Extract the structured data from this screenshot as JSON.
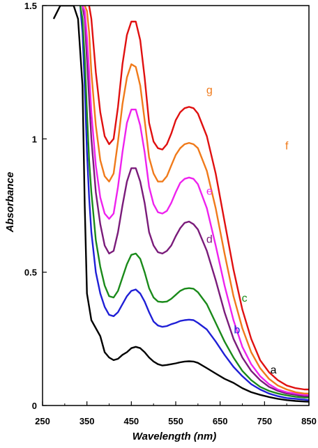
{
  "chart_data": {
    "type": "line",
    "xlabel": "Wavelength (nm)",
    "ylabel": "Absorbance",
    "xlim": [
      250,
      850
    ],
    "ylim": [
      0,
      1.5
    ],
    "xticks": [
      "250",
      "350",
      "450",
      "550",
      "650",
      "750",
      "850"
    ],
    "yticks": [
      "0",
      "0.5",
      "1",
      "1.5"
    ],
    "grid": false,
    "legend": "none",
    "series": [
      {
        "name": "a",
        "color": "#000000",
        "x": [
          275,
          290,
          300,
          310,
          320,
          330,
          340,
          345,
          350,
          360,
          370,
          380,
          390,
          400,
          410,
          420,
          430,
          440,
          450,
          460,
          470,
          480,
          490,
          500,
          510,
          520,
          530,
          540,
          550,
          560,
          570,
          580,
          590,
          600,
          620,
          640,
          660,
          680,
          700,
          720,
          740,
          760,
          780,
          800,
          820,
          840,
          850
        ],
        "y": [
          1.45,
          1.5,
          1.5,
          1.5,
          1.5,
          1.45,
          1.2,
          0.75,
          0.42,
          0.32,
          0.29,
          0.26,
          0.2,
          0.18,
          0.17,
          0.175,
          0.19,
          0.2,
          0.215,
          0.22,
          0.215,
          0.2,
          0.18,
          0.165,
          0.155,
          0.15,
          0.152,
          0.155,
          0.158,
          0.162,
          0.165,
          0.166,
          0.165,
          0.16,
          0.14,
          0.12,
          0.1,
          0.085,
          0.065,
          0.05,
          0.04,
          0.032,
          0.025,
          0.02,
          0.017,
          0.015,
          0.014
        ]
      },
      {
        "name": "b",
        "color": "#1f1fd6",
        "x": [
          335,
          340,
          345,
          350,
          355,
          360,
          370,
          380,
          390,
          400,
          410,
          420,
          430,
          440,
          450,
          460,
          470,
          480,
          490,
          500,
          510,
          520,
          530,
          540,
          550,
          560,
          570,
          580,
          590,
          600,
          620,
          640,
          660,
          680,
          700,
          720,
          740,
          760,
          780,
          800,
          820,
          840,
          850
        ],
        "y": [
          1.5,
          1.4,
          1.2,
          0.95,
          0.78,
          0.65,
          0.5,
          0.42,
          0.37,
          0.34,
          0.335,
          0.35,
          0.38,
          0.41,
          0.43,
          0.435,
          0.42,
          0.39,
          0.35,
          0.315,
          0.3,
          0.295,
          0.298,
          0.305,
          0.31,
          0.317,
          0.32,
          0.322,
          0.32,
          0.31,
          0.285,
          0.24,
          0.19,
          0.145,
          0.11,
          0.08,
          0.06,
          0.045,
          0.035,
          0.028,
          0.025,
          0.022,
          0.02
        ]
      },
      {
        "name": "c",
        "color": "#1a8a1a",
        "x": [
          335,
          340,
          345,
          350,
          355,
          360,
          370,
          380,
          390,
          400,
          410,
          420,
          430,
          440,
          450,
          460,
          470,
          480,
          490,
          500,
          510,
          520,
          530,
          540,
          550,
          560,
          570,
          580,
          590,
          600,
          620,
          640,
          660,
          680,
          700,
          720,
          740,
          760,
          780,
          800,
          820,
          840,
          850
        ],
        "y": [
          1.5,
          1.45,
          1.3,
          1.1,
          0.92,
          0.8,
          0.62,
          0.52,
          0.45,
          0.41,
          0.405,
          0.43,
          0.48,
          0.53,
          0.565,
          0.57,
          0.55,
          0.5,
          0.44,
          0.405,
          0.39,
          0.388,
          0.39,
          0.4,
          0.415,
          0.43,
          0.438,
          0.44,
          0.438,
          0.425,
          0.38,
          0.31,
          0.24,
          0.18,
          0.13,
          0.095,
          0.07,
          0.055,
          0.045,
          0.038,
          0.033,
          0.03,
          0.03
        ]
      },
      {
        "name": "d",
        "color": "#7a1b7a",
        "x": [
          340,
          345,
          350,
          355,
          360,
          370,
          380,
          390,
          400,
          410,
          420,
          430,
          440,
          450,
          460,
          470,
          480,
          490,
          500,
          510,
          520,
          530,
          540,
          550,
          560,
          570,
          580,
          590,
          600,
          620,
          640,
          660,
          680,
          700,
          720,
          740,
          760,
          780,
          800,
          820,
          840,
          850
        ],
        "y": [
          1.5,
          1.45,
          1.3,
          1.15,
          1.0,
          0.8,
          0.68,
          0.6,
          0.57,
          0.58,
          0.65,
          0.75,
          0.84,
          0.89,
          0.89,
          0.84,
          0.76,
          0.65,
          0.6,
          0.575,
          0.57,
          0.58,
          0.6,
          0.635,
          0.665,
          0.685,
          0.69,
          0.68,
          0.66,
          0.58,
          0.47,
          0.35,
          0.25,
          0.18,
          0.13,
          0.095,
          0.07,
          0.055,
          0.045,
          0.04,
          0.035,
          0.035
        ]
      },
      {
        "name": "e",
        "color": "#ee22ee",
        "x": [
          340,
          345,
          350,
          355,
          360,
          370,
          380,
          390,
          400,
          410,
          420,
          430,
          440,
          450,
          460,
          470,
          480,
          490,
          500,
          510,
          520,
          530,
          540,
          550,
          560,
          570,
          580,
          590,
          600,
          620,
          640,
          660,
          680,
          700,
          720,
          740,
          760,
          780,
          800,
          820,
          840,
          850
        ],
        "y": [
          1.5,
          1.48,
          1.38,
          1.25,
          1.1,
          0.9,
          0.78,
          0.72,
          0.7,
          0.72,
          0.82,
          0.95,
          1.06,
          1.11,
          1.11,
          1.05,
          0.95,
          0.82,
          0.755,
          0.725,
          0.72,
          0.73,
          0.76,
          0.8,
          0.835,
          0.85,
          0.855,
          0.85,
          0.83,
          0.74,
          0.6,
          0.45,
          0.32,
          0.22,
          0.155,
          0.11,
          0.08,
          0.06,
          0.05,
          0.045,
          0.04,
          0.04
        ]
      },
      {
        "name": "f",
        "color": "#f07a1a",
        "x": [
          345,
          350,
          355,
          360,
          370,
          380,
          390,
          400,
          410,
          420,
          430,
          440,
          450,
          460,
          470,
          480,
          490,
          500,
          510,
          520,
          530,
          540,
          550,
          560,
          570,
          580,
          590,
          600,
          620,
          640,
          660,
          680,
          700,
          720,
          740,
          760,
          780,
          800,
          820,
          840,
          850
        ],
        "y": [
          1.5,
          1.48,
          1.4,
          1.25,
          1.05,
          0.92,
          0.86,
          0.84,
          0.87,
          0.99,
          1.13,
          1.23,
          1.28,
          1.27,
          1.2,
          1.07,
          0.93,
          0.87,
          0.84,
          0.84,
          0.86,
          0.9,
          0.94,
          0.965,
          0.98,
          0.985,
          0.98,
          0.965,
          0.88,
          0.74,
          0.57,
          0.41,
          0.29,
          0.2,
          0.14,
          0.1,
          0.075,
          0.06,
          0.05,
          0.045,
          0.045
        ]
      },
      {
        "name": "g",
        "color": "#e01010",
        "x": [
          355,
          360,
          365,
          370,
          380,
          390,
          400,
          410,
          420,
          430,
          440,
          450,
          460,
          470,
          480,
          490,
          500,
          510,
          520,
          530,
          540,
          550,
          560,
          570,
          580,
          590,
          600,
          620,
          640,
          660,
          680,
          700,
          720,
          740,
          760,
          780,
          800,
          820,
          840,
          850
        ],
        "y": [
          1.5,
          1.45,
          1.35,
          1.25,
          1.1,
          1.01,
          0.98,
          1.0,
          1.12,
          1.28,
          1.39,
          1.44,
          1.44,
          1.37,
          1.23,
          1.06,
          0.99,
          0.965,
          0.96,
          0.98,
          1.02,
          1.07,
          1.1,
          1.115,
          1.12,
          1.115,
          1.095,
          1.01,
          0.87,
          0.69,
          0.51,
          0.36,
          0.25,
          0.17,
          0.125,
          0.095,
          0.075,
          0.065,
          0.06,
          0.06
        ]
      }
    ],
    "annotations": [
      {
        "text": "a",
        "x": 770,
        "y": 0.12,
        "color": "#000000"
      },
      {
        "text": "b",
        "x": 688,
        "y": 0.27,
        "color": "#1f1fd6"
      },
      {
        "text": "c",
        "x": 705,
        "y": 0.39,
        "color": "#1a8a1a"
      },
      {
        "text": "d",
        "x": 626,
        "y": 0.61,
        "color": "#7a1b7a"
      },
      {
        "text": "e",
        "x": 626,
        "y": 0.79,
        "color": "#ee22ee"
      },
      {
        "text": "f",
        "x": 800,
        "y": 0.96,
        "color": "#f07a1a"
      },
      {
        "text": "g",
        "x": 626,
        "y": 1.17,
        "color": "#f07a1a"
      }
    ]
  }
}
